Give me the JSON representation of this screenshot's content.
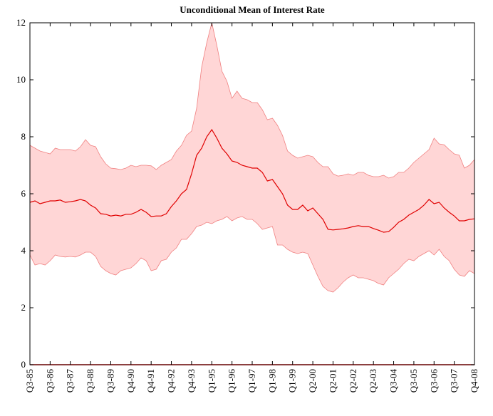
{
  "chart_data": {
    "type": "band-line",
    "title": "Unconditional Mean of Interest Rate",
    "categories": [
      "Q3-85",
      null,
      null,
      null,
      "Q3-86",
      null,
      null,
      null,
      "Q3-87",
      null,
      null,
      null,
      "Q3-88",
      null,
      null,
      null,
      "Q3-89",
      null,
      null,
      null,
      "Q4-90",
      null,
      null,
      null,
      "Q4-91",
      null,
      null,
      null,
      "Q4-92",
      null,
      null,
      null,
      "Q4-93",
      null,
      null,
      null,
      "Q1-95",
      null,
      null,
      null,
      "Q1-96",
      null,
      null,
      null,
      "Q1-97",
      null,
      null,
      null,
      "Q1-98",
      null,
      null,
      null,
      "Q1-99",
      null,
      null,
      null,
      "Q2-00",
      null,
      null,
      null,
      "Q2-01",
      null,
      null,
      null,
      "Q2-02",
      null,
      null,
      null,
      "Q2-03",
      null,
      null,
      null,
      "Q3-04",
      null,
      null,
      null,
      "Q3-05",
      null,
      null,
      null,
      "Q3-06",
      null,
      null,
      null,
      "Q3-07",
      null,
      null,
      null,
      "Q4-08"
    ],
    "series": [
      {
        "color": "#e00000",
        "values": [
          5.7,
          5.75,
          5.65,
          5.7,
          5.75,
          5.75,
          5.78,
          5.7,
          5.72,
          5.75,
          5.8,
          5.75,
          5.6,
          5.5,
          5.3,
          5.28,
          5.22,
          5.25,
          5.22,
          5.28,
          5.28,
          5.35,
          5.45,
          5.35,
          5.2,
          5.22,
          5.22,
          5.3,
          5.55,
          5.75,
          6.0,
          6.15,
          6.7,
          7.35,
          7.6,
          8.0,
          8.25,
          7.95,
          7.6,
          7.4,
          7.15,
          7.1,
          7.0,
          6.95,
          6.9,
          6.9,
          6.75,
          6.45,
          6.5,
          6.25,
          6.0,
          5.6,
          5.45,
          5.45,
          5.6,
          5.4,
          5.5,
          5.3,
          5.1,
          4.75,
          4.73,
          4.75,
          4.77,
          4.8,
          4.85,
          4.88,
          4.85,
          4.85,
          4.78,
          4.72,
          4.65,
          4.67,
          4.82,
          5.0,
          5.1,
          5.25,
          5.35,
          5.45,
          5.6,
          5.8,
          5.65,
          5.7,
          5.5,
          5.35,
          5.22,
          5.05,
          5.05,
          5.1,
          5.12
        ]
      }
    ],
    "band": {
      "color": "#ffd6d6",
      "edge_color": "#f08080",
      "upper": [
        7.7,
        7.6,
        7.5,
        7.45,
        7.4,
        7.6,
        7.55,
        7.55,
        7.55,
        7.5,
        7.65,
        7.9,
        7.7,
        7.65,
        7.3,
        7.05,
        6.9,
        6.88,
        6.85,
        6.9,
        7.0,
        6.95,
        7.0,
        7.0,
        6.98,
        6.85,
        7.0,
        7.1,
        7.2,
        7.5,
        7.7,
        8.05,
        8.2,
        9.0,
        10.45,
        11.3,
        12.0,
        11.2,
        10.3,
        9.95,
        9.35,
        9.6,
        9.35,
        9.3,
        9.2,
        9.2,
        8.95,
        8.6,
        8.65,
        8.4,
        8.05,
        7.5,
        7.35,
        7.25,
        7.3,
        7.35,
        7.3,
        7.1,
        6.95,
        6.95,
        6.7,
        6.62,
        6.65,
        6.7,
        6.65,
        6.75,
        6.75,
        6.65,
        6.6,
        6.6,
        6.65,
        6.55,
        6.6,
        6.75,
        6.75,
        6.9,
        7.1,
        7.25,
        7.4,
        7.55,
        7.95,
        7.75,
        7.72,
        7.55,
        7.4,
        7.35,
        6.9,
        7.0,
        7.2
      ],
      "lower": [
        3.85,
        3.5,
        3.55,
        3.5,
        3.65,
        3.85,
        3.8,
        3.78,
        3.8,
        3.78,
        3.85,
        3.95,
        3.95,
        3.8,
        3.45,
        3.3,
        3.2,
        3.15,
        3.3,
        3.35,
        3.4,
        3.55,
        3.75,
        3.65,
        3.3,
        3.35,
        3.65,
        3.7,
        3.95,
        4.1,
        4.4,
        4.4,
        4.6,
        4.85,
        4.9,
        5.0,
        4.95,
        5.05,
        5.1,
        5.2,
        5.05,
        5.15,
        5.2,
        5.1,
        5.1,
        4.95,
        4.75,
        4.8,
        4.85,
        4.2,
        4.2,
        4.05,
        3.95,
        3.9,
        3.95,
        3.9,
        3.5,
        3.1,
        2.75,
        2.6,
        2.55,
        2.7,
        2.9,
        3.05,
        3.15,
        3.05,
        3.05,
        3.0,
        2.95,
        2.85,
        2.8,
        3.05,
        3.2,
        3.35,
        3.55,
        3.7,
        3.65,
        3.8,
        3.9,
        4.0,
        3.85,
        4.05,
        3.8,
        3.65,
        3.35,
        3.15,
        3.1,
        3.3,
        3.2
      ]
    },
    "ylim": [
      0,
      12
    ],
    "yticks": [
      0,
      2,
      4,
      6,
      8,
      10,
      12
    ]
  }
}
